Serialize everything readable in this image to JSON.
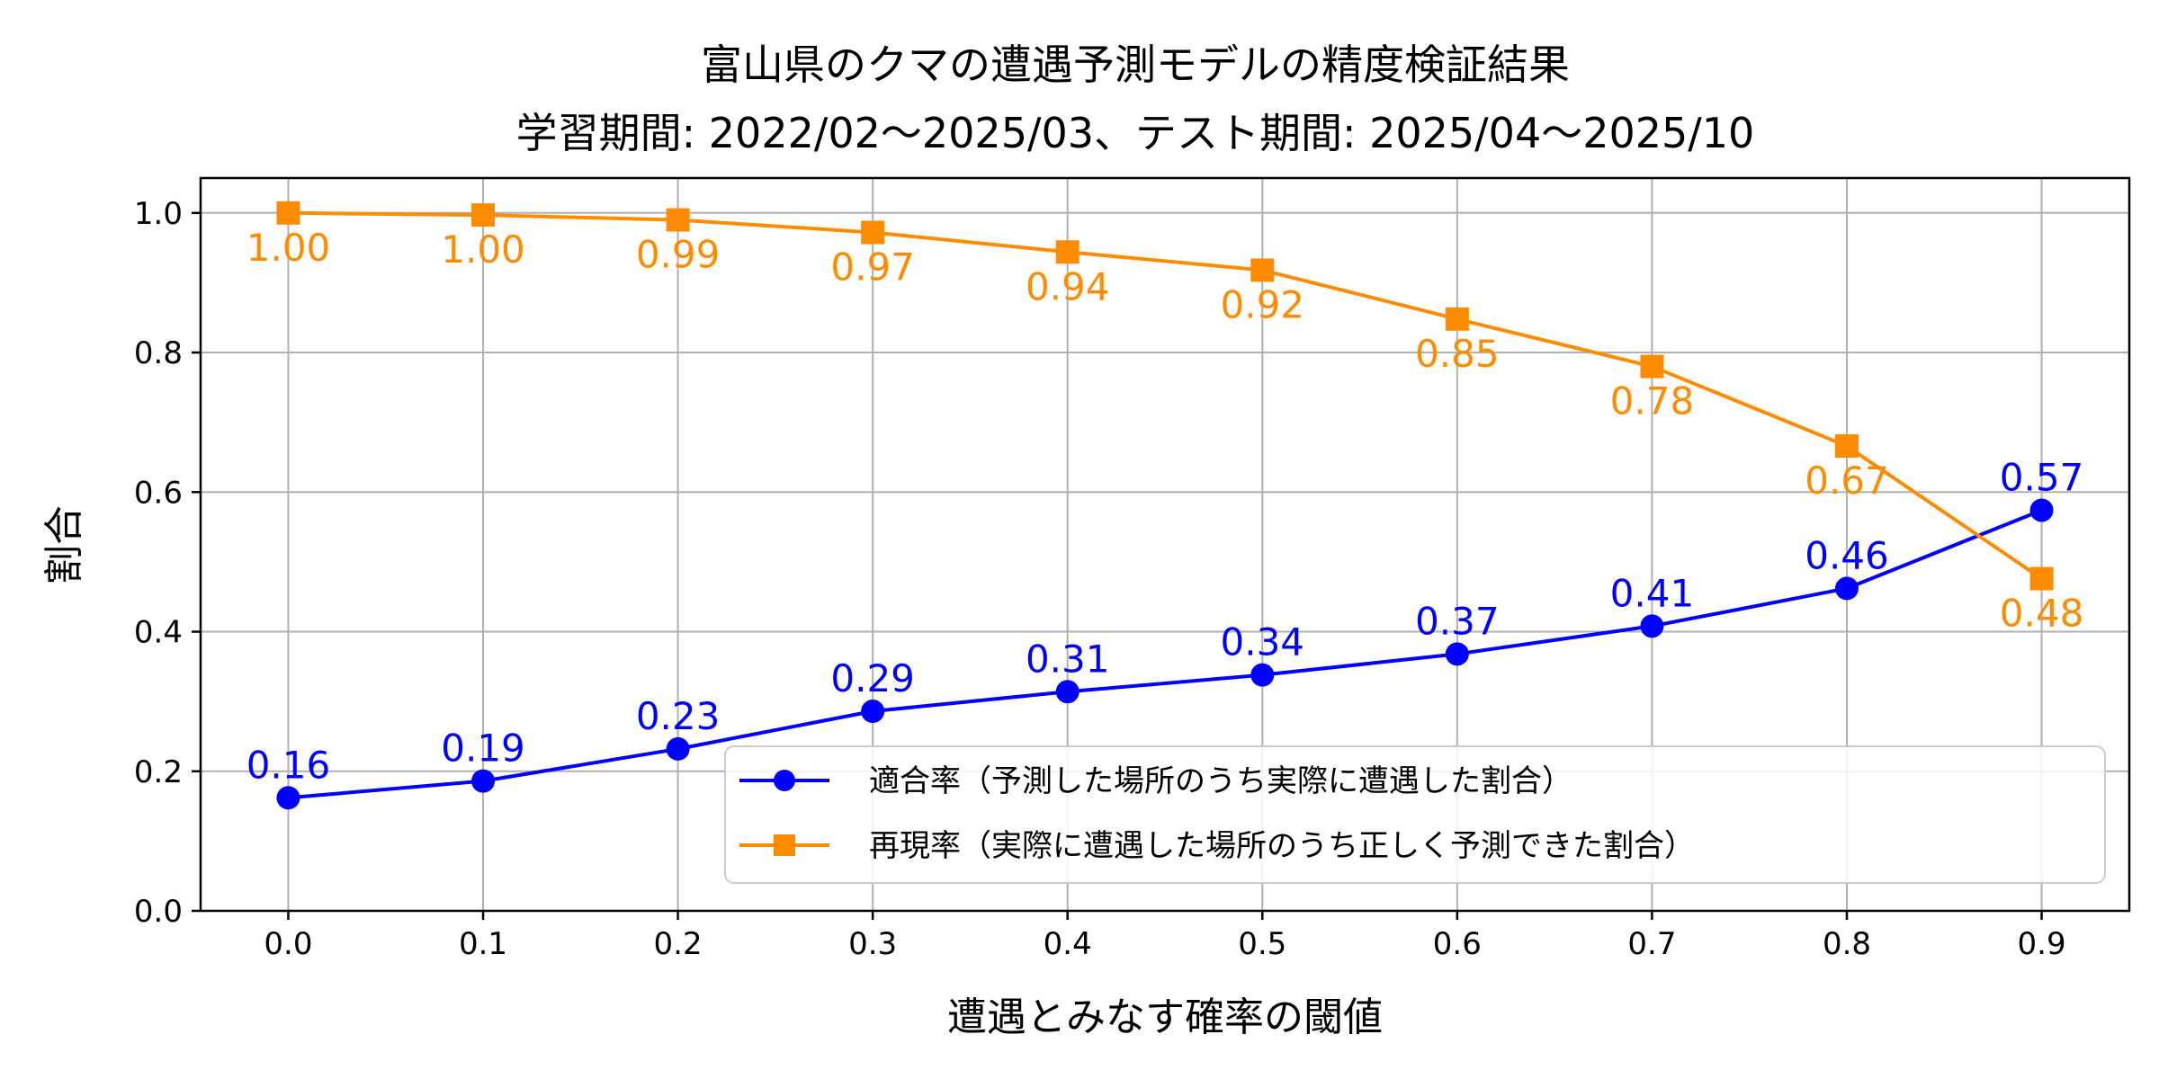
{
  "chart_data": {
    "type": "line",
    "title_line1": "富山県のクマの遭遇予測モデルの精度検証結果",
    "title_line2": "学習期間: 2022/02〜2025/03、テスト期間: 2025/04〜2025/10",
    "xlabel": "遭遇とみなす確率の閾値",
    "ylabel": "割合",
    "x": [
      0.0,
      0.1,
      0.2,
      0.3,
      0.4,
      0.5,
      0.6,
      0.7,
      0.8,
      0.9
    ],
    "x_tick_labels": [
      "0.0",
      "0.1",
      "0.2",
      "0.3",
      "0.4",
      "0.5",
      "0.6",
      "0.7",
      "0.8",
      "0.9"
    ],
    "xlim": [
      -0.045,
      0.945
    ],
    "ylim": [
      0.0,
      1.05
    ],
    "y_ticks": [
      0.0,
      0.2,
      0.4,
      0.6,
      0.8,
      1.0
    ],
    "y_tick_labels": [
      "0.0",
      "0.2",
      "0.4",
      "0.6",
      "0.8",
      "1.0"
    ],
    "grid": true,
    "legend_position": "lower-right",
    "series": [
      {
        "key": "precision",
        "name": "適合率（予測した場所のうち実際に遭遇した割合）",
        "color": "#0000ff",
        "marker": "circle",
        "label_position": "above",
        "values": [
          0.162,
          0.186,
          0.232,
          0.286,
          0.314,
          0.338,
          0.368,
          0.408,
          0.462,
          0.574
        ],
        "labels": [
          "0.16",
          "0.19",
          "0.23",
          "0.29",
          "0.31",
          "0.34",
          "0.37",
          "0.41",
          "0.46",
          "0.57"
        ]
      },
      {
        "key": "recall",
        "name": "再現率（実際に遭遇した場所のうち正しく予測できた割合）",
        "color": "#ff8c00",
        "marker": "square",
        "label_position": "below",
        "values": [
          1.0,
          0.997,
          0.99,
          0.972,
          0.944,
          0.918,
          0.848,
          0.78,
          0.666,
          0.476
        ],
        "labels": [
          "1.00",
          "1.00",
          "0.99",
          "0.97",
          "0.94",
          "0.92",
          "0.85",
          "0.78",
          "0.67",
          "0.48"
        ]
      }
    ]
  }
}
